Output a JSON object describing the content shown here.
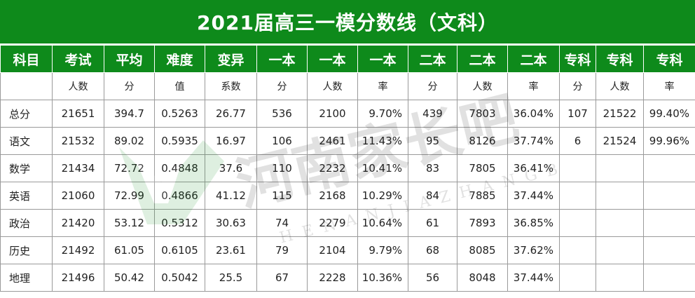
{
  "title": "2021届高三一模分数线（文科）",
  "watermark": {
    "main": "河南家长吧",
    "sub": "HENANJIAZHANGBA"
  },
  "headers": [
    "科目",
    "考试",
    "平均",
    "难度",
    "变异",
    "一本",
    "一本",
    "一本",
    "二本",
    "二本",
    "二本",
    "专科",
    "专科",
    "专科"
  ],
  "subheaders": [
    "",
    "人数",
    "分",
    "值",
    "系数",
    "分",
    "人数",
    "率",
    "分",
    "人数",
    "率",
    "分",
    "人数",
    "率"
  ],
  "rows": [
    [
      "总分",
      "21651",
      "394.7",
      "0.5263",
      "26.77",
      "536",
      "2100",
      "9.70%",
      "439",
      "7803",
      "36.04%",
      "107",
      "21522",
      "99.40%"
    ],
    [
      "语文",
      "21532",
      "89.02",
      "0.5935",
      "16.97",
      "106",
      "2461",
      "11.43%",
      "95",
      "8126",
      "37.74%",
      "6",
      "21524",
      "99.96%"
    ],
    [
      "数学",
      "21434",
      "72.72",
      "0.4848",
      "37.6",
      "110",
      "2232",
      "10.41%",
      "83",
      "7805",
      "36.41%",
      "",
      "",
      ""
    ],
    [
      "英语",
      "21060",
      "72.99",
      "0.4866",
      "41.12",
      "115",
      "2168",
      "10.29%",
      "84",
      "7885",
      "37.44%",
      "",
      "",
      ""
    ],
    [
      "政治",
      "21420",
      "53.12",
      "0.5312",
      "30.63",
      "74",
      "2279",
      "10.64%",
      "61",
      "7893",
      "36.85%",
      "",
      "",
      ""
    ],
    [
      "历史",
      "21492",
      "61.05",
      "0.6105",
      "23.61",
      "79",
      "2104",
      "9.79%",
      "68",
      "8085",
      "37.62%",
      "",
      "",
      ""
    ],
    [
      "地理",
      "21496",
      "50.42",
      "0.5042",
      "25.5",
      "67",
      "2228",
      "10.36%",
      "56",
      "8048",
      "37.44%",
      "",
      "",
      ""
    ]
  ]
}
